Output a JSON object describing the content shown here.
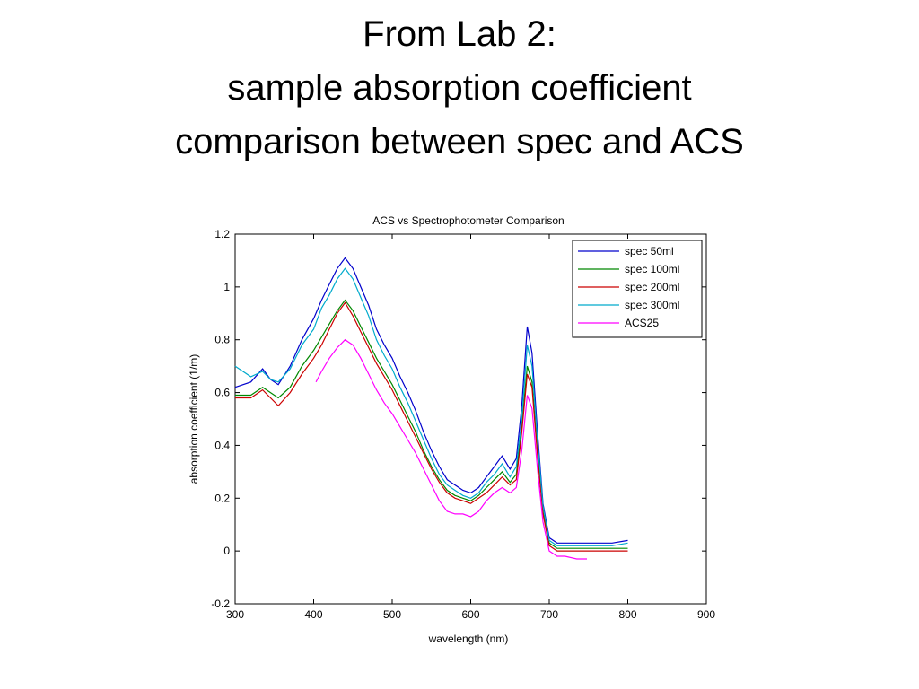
{
  "slide": {
    "title_lines": [
      "From Lab 2:",
      "sample absorption coefficient",
      "comparison between spec and ACS"
    ]
  },
  "chart_data": {
    "type": "line",
    "title": "ACS vs Spectrophotometer Comparison",
    "xlabel": "wavelength (nm)",
    "ylabel": "absorption coefficient (1/m)",
    "xlim": [
      300,
      900
    ],
    "ylim": [
      -0.2,
      1.2
    ],
    "xticks": [
      300,
      400,
      500,
      600,
      700,
      800,
      900
    ],
    "yticks": [
      -0.2,
      0,
      0.2,
      0.4,
      0.6,
      0.8,
      1,
      1.2
    ],
    "grid": false,
    "legend_position": "top-right",
    "series": [
      {
        "name": "spec 50ml",
        "color": "#0000cc",
        "points": [
          [
            300,
            0.62
          ],
          [
            320,
            0.64
          ],
          [
            335,
            0.69
          ],
          [
            345,
            0.65
          ],
          [
            355,
            0.63
          ],
          [
            370,
            0.7
          ],
          [
            385,
            0.8
          ],
          [
            400,
            0.88
          ],
          [
            410,
            0.95
          ],
          [
            420,
            1.01
          ],
          [
            430,
            1.07
          ],
          [
            440,
            1.11
          ],
          [
            450,
            1.07
          ],
          [
            460,
            1.0
          ],
          [
            470,
            0.93
          ],
          [
            480,
            0.84
          ],
          [
            490,
            0.78
          ],
          [
            500,
            0.73
          ],
          [
            510,
            0.66
          ],
          [
            520,
            0.6
          ],
          [
            530,
            0.53
          ],
          [
            540,
            0.45
          ],
          [
            550,
            0.38
          ],
          [
            560,
            0.32
          ],
          [
            570,
            0.27
          ],
          [
            580,
            0.25
          ],
          [
            590,
            0.23
          ],
          [
            600,
            0.22
          ],
          [
            610,
            0.24
          ],
          [
            620,
            0.28
          ],
          [
            630,
            0.32
          ],
          [
            640,
            0.36
          ],
          [
            650,
            0.31
          ],
          [
            658,
            0.35
          ],
          [
            665,
            0.55
          ],
          [
            672,
            0.85
          ],
          [
            678,
            0.75
          ],
          [
            685,
            0.45
          ],
          [
            692,
            0.18
          ],
          [
            700,
            0.05
          ],
          [
            710,
            0.03
          ],
          [
            720,
            0.03
          ],
          [
            740,
            0.03
          ],
          [
            760,
            0.03
          ],
          [
            780,
            0.03
          ],
          [
            800,
            0.04
          ]
        ]
      },
      {
        "name": "spec 100ml",
        "color": "#008800",
        "points": [
          [
            300,
            0.59
          ],
          [
            320,
            0.59
          ],
          [
            335,
            0.62
          ],
          [
            345,
            0.6
          ],
          [
            355,
            0.58
          ],
          [
            370,
            0.62
          ],
          [
            385,
            0.7
          ],
          [
            400,
            0.76
          ],
          [
            410,
            0.81
          ],
          [
            420,
            0.86
          ],
          [
            430,
            0.91
          ],
          [
            440,
            0.95
          ],
          [
            450,
            0.91
          ],
          [
            460,
            0.85
          ],
          [
            470,
            0.79
          ],
          [
            480,
            0.73
          ],
          [
            490,
            0.68
          ],
          [
            500,
            0.63
          ],
          [
            510,
            0.57
          ],
          [
            520,
            0.51
          ],
          [
            530,
            0.45
          ],
          [
            540,
            0.38
          ],
          [
            550,
            0.32
          ],
          [
            560,
            0.27
          ],
          [
            570,
            0.23
          ],
          [
            580,
            0.21
          ],
          [
            590,
            0.2
          ],
          [
            600,
            0.19
          ],
          [
            610,
            0.21
          ],
          [
            620,
            0.24
          ],
          [
            630,
            0.27
          ],
          [
            640,
            0.3
          ],
          [
            650,
            0.26
          ],
          [
            658,
            0.29
          ],
          [
            665,
            0.47
          ],
          [
            672,
            0.7
          ],
          [
            678,
            0.64
          ],
          [
            685,
            0.38
          ],
          [
            692,
            0.15
          ],
          [
            700,
            0.03
          ],
          [
            710,
            0.01
          ],
          [
            720,
            0.01
          ],
          [
            740,
            0.01
          ],
          [
            760,
            0.01
          ],
          [
            780,
            0.01
          ],
          [
            800,
            0.01
          ]
        ]
      },
      {
        "name": "spec 200ml",
        "color": "#cc0000",
        "points": [
          [
            300,
            0.58
          ],
          [
            320,
            0.58
          ],
          [
            335,
            0.61
          ],
          [
            345,
            0.58
          ],
          [
            355,
            0.55
          ],
          [
            370,
            0.6
          ],
          [
            385,
            0.67
          ],
          [
            400,
            0.73
          ],
          [
            410,
            0.78
          ],
          [
            420,
            0.84
          ],
          [
            430,
            0.9
          ],
          [
            440,
            0.94
          ],
          [
            450,
            0.89
          ],
          [
            460,
            0.83
          ],
          [
            470,
            0.77
          ],
          [
            480,
            0.71
          ],
          [
            490,
            0.66
          ],
          [
            500,
            0.61
          ],
          [
            510,
            0.55
          ],
          [
            520,
            0.49
          ],
          [
            530,
            0.43
          ],
          [
            540,
            0.37
          ],
          [
            550,
            0.31
          ],
          [
            560,
            0.26
          ],
          [
            570,
            0.22
          ],
          [
            580,
            0.2
          ],
          [
            590,
            0.19
          ],
          [
            600,
            0.18
          ],
          [
            610,
            0.2
          ],
          [
            620,
            0.22
          ],
          [
            630,
            0.25
          ],
          [
            640,
            0.28
          ],
          [
            650,
            0.25
          ],
          [
            658,
            0.27
          ],
          [
            665,
            0.45
          ],
          [
            672,
            0.67
          ],
          [
            678,
            0.62
          ],
          [
            685,
            0.36
          ],
          [
            692,
            0.14
          ],
          [
            700,
            0.02
          ],
          [
            710,
            0.0
          ],
          [
            720,
            0.0
          ],
          [
            740,
            0.0
          ],
          [
            760,
            0.0
          ],
          [
            780,
            0.0
          ],
          [
            800,
            0.0
          ]
        ]
      },
      {
        "name": "spec 300ml",
        "color": "#00aacc",
        "points": [
          [
            300,
            0.7
          ],
          [
            320,
            0.66
          ],
          [
            335,
            0.68
          ],
          [
            345,
            0.65
          ],
          [
            355,
            0.64
          ],
          [
            370,
            0.69
          ],
          [
            385,
            0.78
          ],
          [
            400,
            0.84
          ],
          [
            410,
            0.92
          ],
          [
            420,
            0.97
          ],
          [
            430,
            1.03
          ],
          [
            440,
            1.07
          ],
          [
            450,
            1.03
          ],
          [
            460,
            0.96
          ],
          [
            470,
            0.89
          ],
          [
            480,
            0.8
          ],
          [
            490,
            0.74
          ],
          [
            500,
            0.69
          ],
          [
            510,
            0.62
          ],
          [
            520,
            0.56
          ],
          [
            530,
            0.49
          ],
          [
            540,
            0.42
          ],
          [
            550,
            0.35
          ],
          [
            560,
            0.29
          ],
          [
            570,
            0.25
          ],
          [
            580,
            0.23
          ],
          [
            590,
            0.21
          ],
          [
            600,
            0.2
          ],
          [
            610,
            0.22
          ],
          [
            620,
            0.26
          ],
          [
            630,
            0.29
          ],
          [
            640,
            0.33
          ],
          [
            650,
            0.28
          ],
          [
            658,
            0.32
          ],
          [
            665,
            0.5
          ],
          [
            672,
            0.78
          ],
          [
            678,
            0.7
          ],
          [
            685,
            0.42
          ],
          [
            692,
            0.17
          ],
          [
            700,
            0.04
          ],
          [
            710,
            0.02
          ],
          [
            720,
            0.02
          ],
          [
            740,
            0.02
          ],
          [
            760,
            0.02
          ],
          [
            780,
            0.02
          ],
          [
            800,
            0.03
          ]
        ]
      },
      {
        "name": "ACS25",
        "color": "#ff00ff",
        "points": [
          [
            403,
            0.64
          ],
          [
            410,
            0.68
          ],
          [
            420,
            0.73
          ],
          [
            430,
            0.77
          ],
          [
            440,
            0.8
          ],
          [
            450,
            0.78
          ],
          [
            460,
            0.73
          ],
          [
            470,
            0.67
          ],
          [
            480,
            0.61
          ],
          [
            490,
            0.56
          ],
          [
            500,
            0.52
          ],
          [
            510,
            0.47
          ],
          [
            520,
            0.42
          ],
          [
            530,
            0.37
          ],
          [
            540,
            0.31
          ],
          [
            550,
            0.25
          ],
          [
            560,
            0.19
          ],
          [
            570,
            0.15
          ],
          [
            580,
            0.14
          ],
          [
            590,
            0.14
          ],
          [
            600,
            0.13
          ],
          [
            610,
            0.15
          ],
          [
            620,
            0.19
          ],
          [
            630,
            0.22
          ],
          [
            640,
            0.24
          ],
          [
            650,
            0.22
          ],
          [
            658,
            0.24
          ],
          [
            665,
            0.38
          ],
          [
            672,
            0.59
          ],
          [
            678,
            0.54
          ],
          [
            685,
            0.31
          ],
          [
            692,
            0.11
          ],
          [
            700,
            0.0
          ],
          [
            710,
            -0.02
          ],
          [
            720,
            -0.02
          ],
          [
            735,
            -0.03
          ],
          [
            748,
            -0.03
          ]
        ]
      }
    ]
  }
}
